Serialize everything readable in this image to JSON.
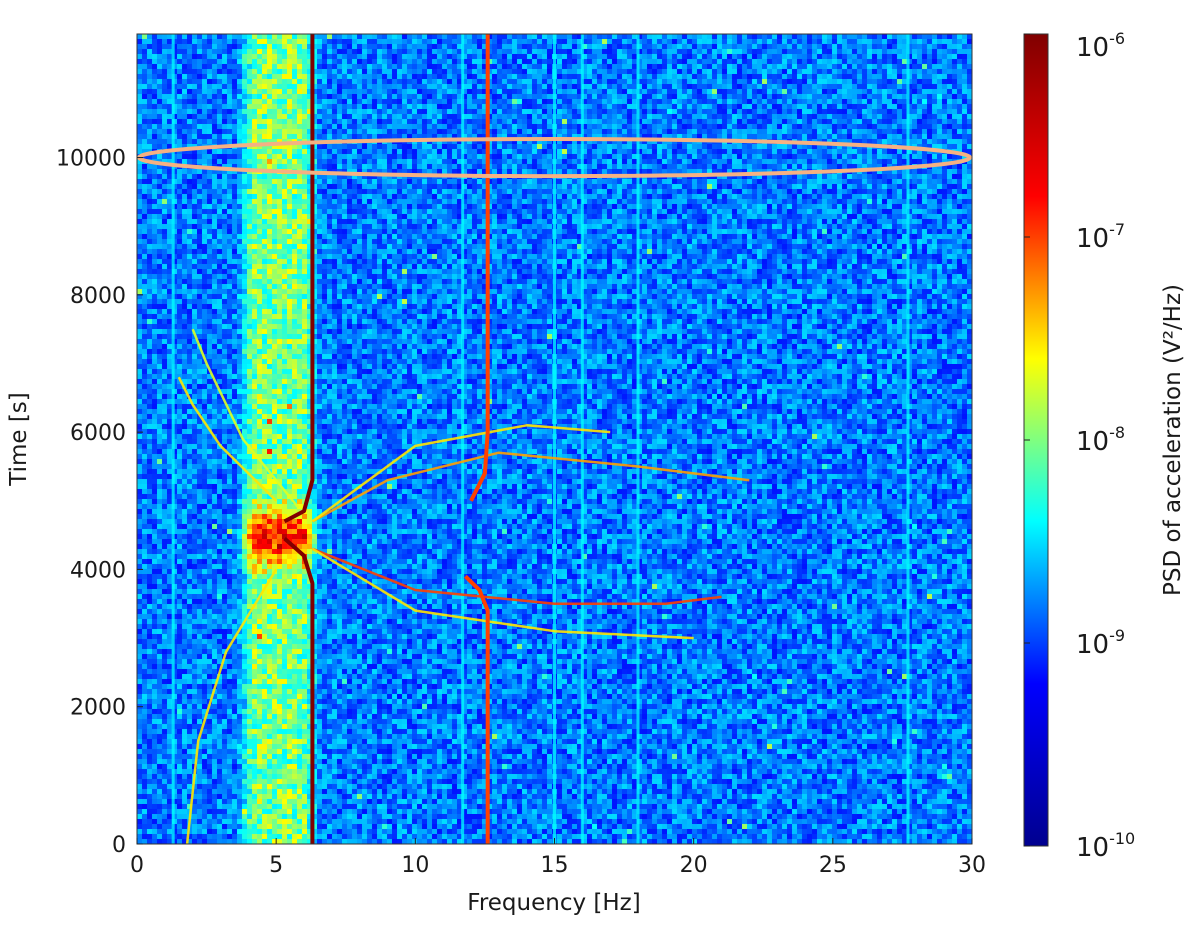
{
  "chart_data": {
    "type": "heatmap",
    "title": "",
    "xlabel": "Frequency [Hz]",
    "ylabel": "Time [s]",
    "xlim": [
      0,
      30
    ],
    "ylim": [
      0,
      11800
    ],
    "xticks": [
      0,
      5,
      10,
      15,
      20,
      25,
      30
    ],
    "yticks": [
      0,
      2000,
      4000,
      6000,
      8000,
      10000
    ],
    "xtick_labels": [
      "0",
      "5",
      "10",
      "15",
      "20",
      "25",
      "30"
    ],
    "ytick_labels": [
      "0",
      "2000",
      "4000",
      "6000",
      "8000",
      "10000"
    ],
    "colormap": "jet",
    "colorbar": {
      "label": "PSD of acceleration (V²/Hz)",
      "scale": "log",
      "range": [
        1e-10,
        1e-06
      ],
      "ticks": [
        {
          "base": "10",
          "exp": "-10",
          "value": 1e-10
        },
        {
          "base": "10",
          "exp": "-9",
          "value": 1e-09
        },
        {
          "base": "10",
          "exp": "-8",
          "value": 1e-08
        },
        {
          "base": "10",
          "exp": "-7",
          "value": 1e-07
        },
        {
          "base": "10",
          "exp": "-6",
          "value": 1e-06
        }
      ],
      "colors": [
        "#00008f",
        "#0000ff",
        "#00ffff",
        "#ffff00",
        "#ff0000",
        "#800000"
      ]
    },
    "background_level": 1.5e-09,
    "broadband_band": {
      "f_range": [
        3.5,
        6.5
      ],
      "level": 1e-08,
      "peak_time": 4500,
      "peak_level": 2e-07
    },
    "constant_lines_hz": [
      1.3,
      11.7,
      15.0,
      16.0,
      18.0,
      27.7
    ],
    "resonance_branches": [
      {
        "name": "6.3 Hz mode",
        "points": [
          [
            6.3,
            0
          ],
          [
            6.3,
            3800
          ],
          [
            6.0,
            4200
          ],
          [
            5.3,
            4450
          ]
        ],
        "level": 1e-06
      },
      {
        "name": "6.3 Hz mode",
        "points": [
          [
            5.3,
            4700
          ],
          [
            6.0,
            4850
          ],
          [
            6.3,
            5300
          ],
          [
            6.3,
            11800
          ]
        ],
        "level": 1e-06
      },
      {
        "name": "12.6 Hz mode",
        "points": [
          [
            12.6,
            0
          ],
          [
            12.6,
            3400
          ],
          [
            12.3,
            3700
          ],
          [
            11.8,
            3900
          ]
        ],
        "level": 1e-07
      },
      {
        "name": "12.6 Hz mode",
        "points": [
          [
            12.0,
            5000
          ],
          [
            12.5,
            5400
          ],
          [
            12.6,
            6000
          ],
          [
            12.6,
            11800
          ]
        ],
        "level": 1e-07
      }
    ],
    "chirp_lines": [
      {
        "points": [
          [
            6.3,
            4300
          ],
          [
            10,
            3700
          ],
          [
            15,
            3500
          ],
          [
            19,
            3500
          ],
          [
            21,
            3600
          ]
        ],
        "level": 1e-07
      },
      {
        "points": [
          [
            6.3,
            4700
          ],
          [
            9,
            5300
          ],
          [
            13,
            5700
          ],
          [
            18,
            5500
          ],
          [
            22,
            5300
          ]
        ],
        "level": 5e-08
      },
      {
        "points": [
          [
            6.3,
            4300
          ],
          [
            10,
            3400
          ],
          [
            15,
            3100
          ],
          [
            20,
            3000
          ]
        ],
        "level": 3e-08
      },
      {
        "points": [
          [
            6.3,
            4700
          ],
          [
            10,
            5800
          ],
          [
            14,
            6100
          ],
          [
            17,
            6000
          ]
        ],
        "level": 3e-08
      },
      {
        "points": [
          [
            1.8,
            0
          ],
          [
            2.2,
            1500
          ],
          [
            3.2,
            2800
          ],
          [
            5.0,
            4000
          ]
        ],
        "level": 3e-08
      },
      {
        "points": [
          [
            5.0,
            5000
          ],
          [
            3.0,
            5800
          ],
          [
            2.0,
            6400
          ],
          [
            1.5,
            6800
          ]
        ],
        "level": 3e-08
      },
      {
        "points": [
          [
            5.8,
            4900
          ],
          [
            3.8,
            5900
          ],
          [
            2.5,
            7000
          ],
          [
            2.0,
            7500
          ]
        ],
        "level": 2e-08
      }
    ],
    "annotations": [
      {
        "type": "ellipse",
        "center": [
          15.0,
          10000
        ],
        "half_width_hz": 15.0,
        "half_height_s": 270,
        "color": "#f4b183"
      }
    ]
  }
}
